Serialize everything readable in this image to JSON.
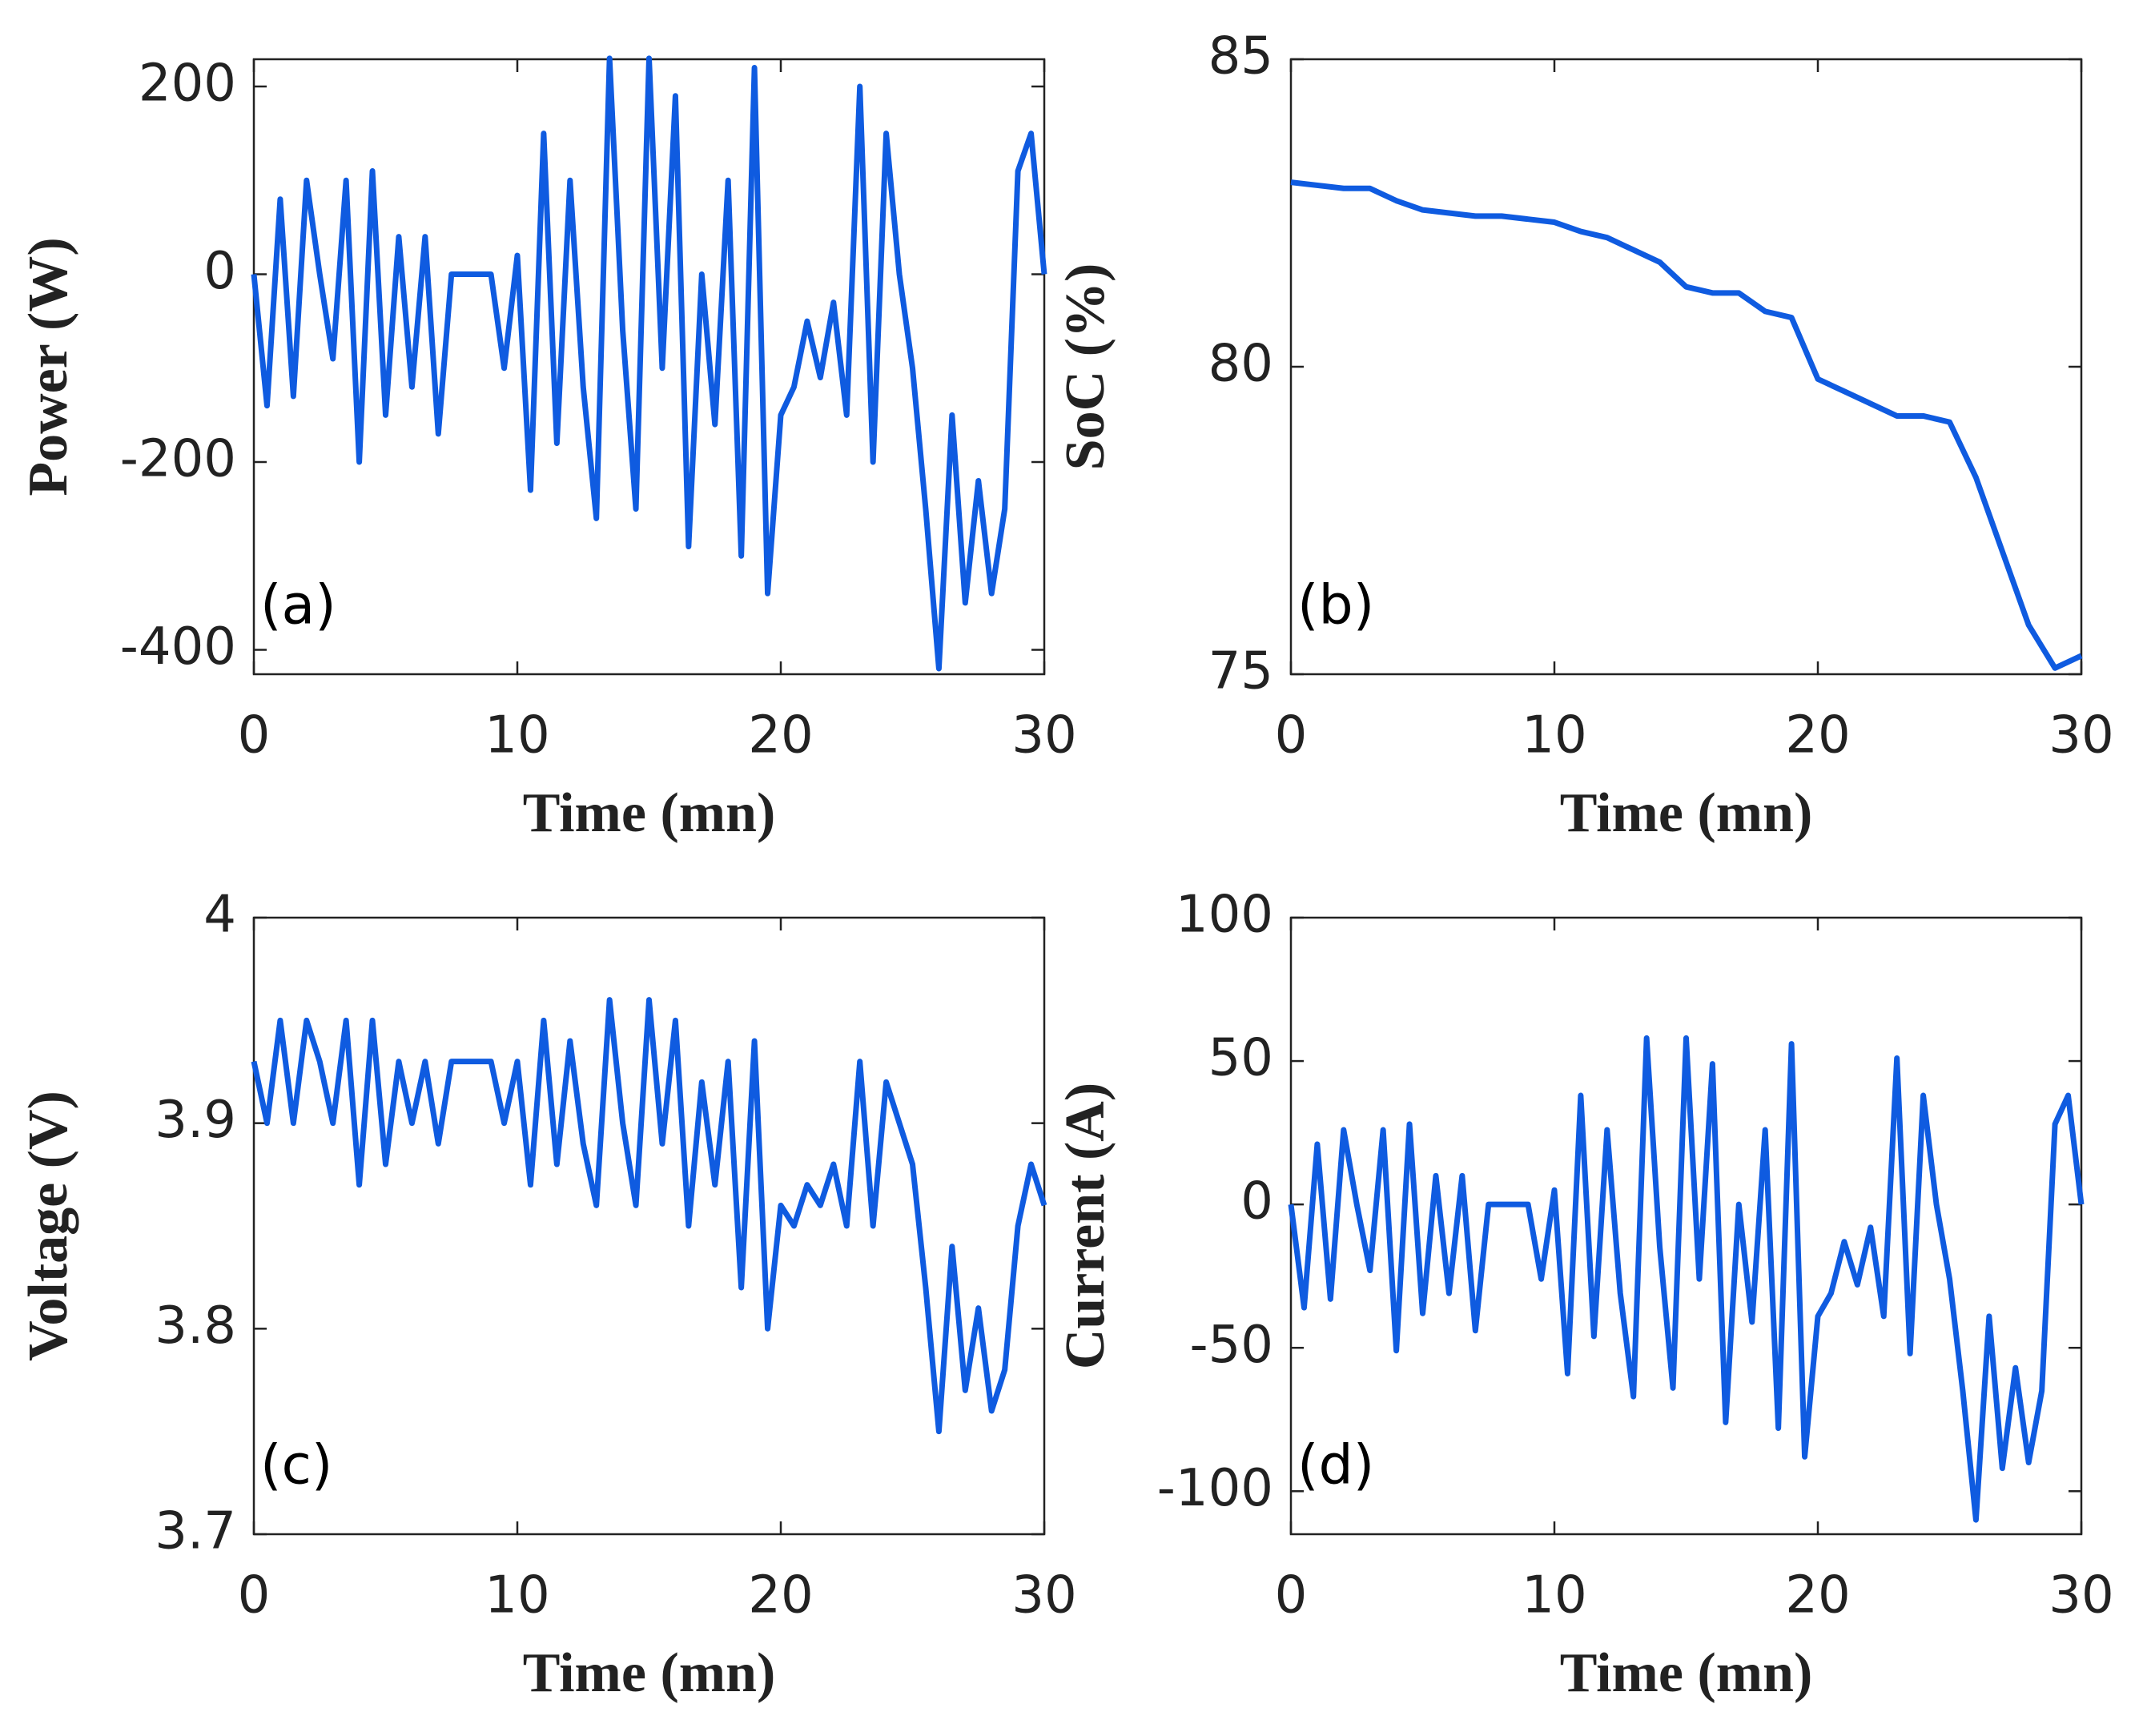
{
  "chart_data": [
    {
      "type": "line",
      "annotation": "(a)",
      "xlabel": "Time (mn)",
      "ylabel": "Power (W)",
      "color": "#0f5be0",
      "xlim": [
        0,
        30
      ],
      "ylim": [
        -426,
        229
      ],
      "xticks": [
        0,
        10,
        20,
        30
      ],
      "yticks": [
        -400,
        -200,
        0,
        200
      ],
      "x": [
        0,
        0.5,
        1,
        1.5,
        2,
        2.5,
        3,
        3.5,
        4,
        4.5,
        5,
        5.5,
        6,
        6.5,
        7,
        7.5,
        8,
        8.5,
        9,
        9.5,
        10,
        10.5,
        11,
        11.5,
        12,
        12.5,
        13,
        13.5,
        14,
        14.5,
        15,
        15.5,
        16,
        16.5,
        17,
        17.5,
        18,
        18.5,
        19,
        19.5,
        20,
        20.5,
        21,
        21.5,
        22,
        22.5,
        23,
        23.5,
        24,
        24.5,
        25,
        25.5,
        26,
        26.5,
        27,
        27.5,
        28,
        28.5,
        29,
        29.5,
        30
      ],
      "values": [
        0,
        -140,
        80,
        -130,
        100,
        0,
        -90,
        100,
        -200,
        110,
        -150,
        40,
        -120,
        40,
        -170,
        0,
        0,
        0,
        0,
        -100,
        20,
        -230,
        150,
        -180,
        100,
        -120,
        -260,
        230,
        -60,
        -250,
        230,
        -100,
        190,
        -290,
        0,
        -160,
        100,
        -300,
        220,
        -340,
        -150,
        -120,
        -50,
        -110,
        -30,
        -150,
        200,
        -200,
        150,
        0,
        -100,
        -250,
        -420,
        -150,
        -350,
        -220,
        -340,
        -250,
        110,
        150,
        0
      ]
    },
    {
      "type": "line",
      "annotation": "(b)",
      "xlabel": "Time (mn)",
      "ylabel": "SoC (%)",
      "color": "#0f5be0",
      "xlim": [
        0,
        30
      ],
      "ylim": [
        75,
        85
      ],
      "xticks": [
        0,
        10,
        20,
        30
      ],
      "yticks": [
        75,
        80,
        85
      ],
      "x": [
        0,
        1,
        2,
        3,
        4,
        5,
        6,
        7,
        8,
        9,
        10,
        11,
        12,
        13,
        14,
        15,
        16,
        17,
        18,
        19,
        20,
        21,
        22,
        23,
        24,
        25,
        26,
        27,
        28,
        29,
        30
      ],
      "values": [
        83.0,
        82.95,
        82.9,
        82.9,
        82.7,
        82.55,
        82.5,
        82.45,
        82.45,
        82.4,
        82.35,
        82.2,
        82.1,
        81.9,
        81.7,
        81.3,
        81.2,
        81.2,
        80.9,
        80.8,
        79.8,
        79.6,
        79.4,
        79.2,
        79.2,
        79.1,
        78.2,
        77.0,
        75.8,
        75.1,
        75.3
      ]
    },
    {
      "type": "line",
      "annotation": "(c)",
      "xlabel": "Time (mn)",
      "ylabel": "Voltage (V)",
      "color": "#0f5be0",
      "xlim": [
        0,
        30
      ],
      "ylim": [
        3.7,
        4
      ],
      "xticks": [
        0,
        10,
        20,
        30
      ],
      "yticks": [
        3.7,
        3.8,
        3.9,
        4
      ],
      "x": [
        0,
        0.5,
        1,
        1.5,
        2,
        2.5,
        3,
        3.5,
        4,
        4.5,
        5,
        5.5,
        6,
        6.5,
        7,
        7.5,
        8,
        8.5,
        9,
        9.5,
        10,
        10.5,
        11,
        11.5,
        12,
        12.5,
        13,
        13.5,
        14,
        14.5,
        15,
        15.5,
        16,
        16.5,
        17,
        17.5,
        18,
        18.5,
        19,
        19.5,
        20,
        20.5,
        21,
        21.5,
        22,
        22.5,
        23,
        23.5,
        24,
        24.5,
        25,
        25.5,
        26,
        26.5,
        27,
        27.5,
        28,
        28.5,
        29,
        29.5,
        30
      ],
      "values": [
        3.93,
        3.9,
        3.95,
        3.9,
        3.95,
        3.93,
        3.9,
        3.95,
        3.87,
        3.95,
        3.88,
        3.93,
        3.9,
        3.93,
        3.89,
        3.93,
        3.93,
        3.93,
        3.93,
        3.9,
        3.93,
        3.87,
        3.95,
        3.88,
        3.94,
        3.89,
        3.86,
        3.96,
        3.9,
        3.86,
        3.96,
        3.89,
        3.95,
        3.85,
        3.92,
        3.87,
        3.93,
        3.82,
        3.94,
        3.8,
        3.86,
        3.85,
        3.87,
        3.86,
        3.88,
        3.85,
        3.93,
        3.85,
        3.92,
        3.9,
        3.88,
        3.82,
        3.75,
        3.84,
        3.77,
        3.81,
        3.76,
        3.78,
        3.85,
        3.88,
        3.86
      ]
    },
    {
      "type": "line",
      "annotation": "(d)",
      "xlabel": "Time (mn)",
      "ylabel": "Current (A)",
      "color": "#0f5be0",
      "xlim": [
        0,
        30
      ],
      "ylim": [
        -115,
        100
      ],
      "xticks": [
        0,
        10,
        20,
        30
      ],
      "yticks": [
        -100,
        -50,
        0,
        50,
        100
      ],
      "x": [
        0,
        0.5,
        1,
        1.5,
        2,
        2.5,
        3,
        3.5,
        4,
        4.5,
        5,
        5.5,
        6,
        6.5,
        7,
        7.5,
        8,
        8.5,
        9,
        9.5,
        10,
        10.5,
        11,
        11.5,
        12,
        12.5,
        13,
        13.5,
        14,
        14.5,
        15,
        15.5,
        16,
        16.5,
        17,
        17.5,
        18,
        18.5,
        19,
        19.5,
        20,
        20.5,
        21,
        21.5,
        22,
        22.5,
        23,
        23.5,
        24,
        24.5,
        25,
        25.5,
        26,
        26.5,
        27,
        27.5,
        28,
        28.5,
        29,
        29.5,
        30
      ],
      "values": [
        0,
        -36,
        21,
        -33,
        26,
        0,
        -23,
        26,
        -51,
        28,
        -38,
        10,
        -31,
        10,
        -44,
        0,
        0,
        0,
        0,
        -26,
        5,
        -59,
        38,
        -46,
        26,
        -31,
        -67,
        58,
        -15,
        -64,
        58,
        -26,
        49,
        -76,
        0,
        -41,
        26,
        -78,
        56,
        -88,
        -39,
        -31,
        -13,
        -28,
        -8,
        -39,
        51,
        -52,
        38,
        0,
        -26,
        -65,
        -110,
        -39,
        -92,
        -57,
        -90,
        -65,
        28,
        38,
        0
      ]
    }
  ]
}
